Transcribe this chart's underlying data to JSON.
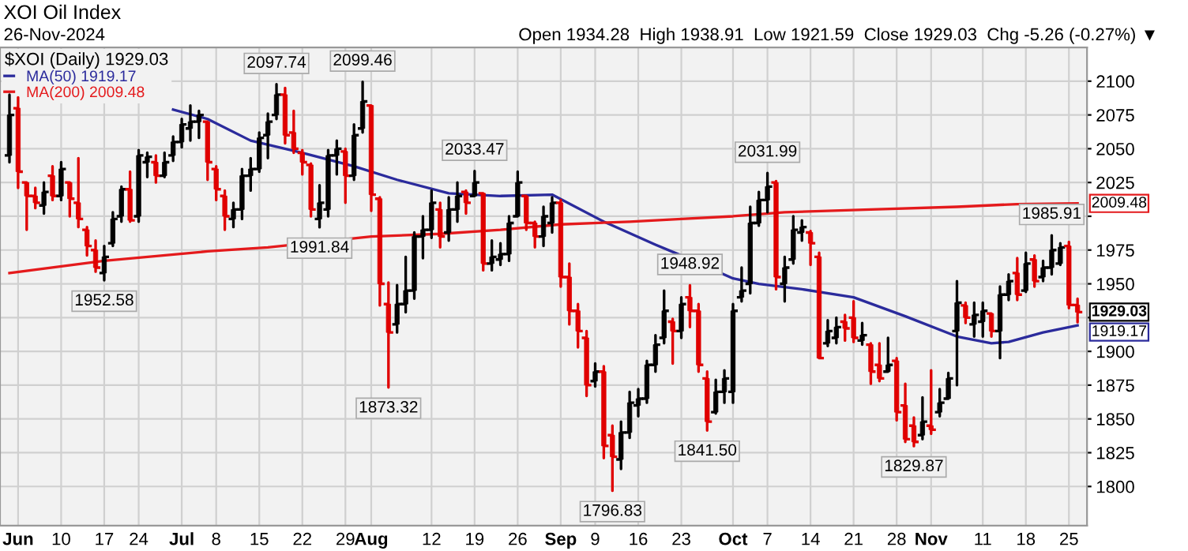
{
  "chart_data": {
    "type": "candlestick",
    "title": "XOI Oil Index",
    "subtitle": "26-Nov-2024",
    "legend_title": "$XOI (Daily) 1929.03",
    "categories": [
      null,
      "Jun",
      null,
      null,
      null,
      null,
      "10",
      null,
      null,
      null,
      null,
      "17",
      null,
      null,
      null,
      "24",
      null,
      null,
      null,
      null,
      "Jul",
      null,
      null,
      null,
      "8",
      null,
      null,
      null,
      null,
      "15",
      null,
      null,
      null,
      null,
      "22",
      null,
      null,
      null,
      null,
      "29",
      null,
      null,
      "Aug",
      null,
      null,
      null,
      null,
      null,
      null,
      "12",
      null,
      null,
      null,
      null,
      "19",
      null,
      null,
      null,
      null,
      "26",
      null,
      null,
      null,
      null,
      "Sep",
      null,
      null,
      null,
      "9",
      null,
      null,
      null,
      null,
      "16",
      null,
      null,
      null,
      null,
      "23",
      null,
      null,
      null,
      null,
      null,
      "Oct",
      null,
      null,
      null,
      "7",
      null,
      null,
      null,
      null,
      "14",
      null,
      null,
      null,
      null,
      "21",
      null,
      null,
      null,
      null,
      "28",
      null,
      null,
      null,
      "Nov",
      null,
      null,
      null,
      null,
      null,
      "11",
      null,
      null,
      null,
      null,
      "18",
      null,
      null,
      null,
      null,
      "25",
      null
    ],
    "ohlc": [
      [
        2045,
        2090,
        2040,
        2075
      ],
      [
        2080,
        2088,
        2021,
        2033
      ],
      [
        2025,
        2025,
        1990,
        2015
      ],
      [
        2015,
        2021,
        2006,
        2010
      ],
      [
        2008,
        2025,
        2002,
        2018
      ],
      [
        2030,
        2037,
        2012,
        2015
      ],
      [
        2015,
        2040,
        2012,
        2035
      ],
      [
        2025,
        2025,
        2000,
        2013
      ],
      [
        2010,
        2043,
        1992,
        1998
      ],
      [
        1990,
        1992,
        1971,
        1978
      ],
      [
        1975,
        1982,
        1959,
        1962
      ],
      [
        1958,
        1978,
        1952.58,
        1970
      ],
      [
        1980,
        2003,
        1978,
        1998
      ],
      [
        2000,
        2022,
        1996,
        2020
      ],
      [
        2020,
        2033,
        1996,
        1997
      ],
      [
        2000,
        2049,
        1996,
        2045
      ],
      [
        2040,
        2047,
        2029,
        2044
      ],
      [
        2040,
        2045,
        2025,
        2030
      ],
      [
        2030,
        2047,
        2029,
        2040
      ],
      [
        2045,
        2059,
        2041,
        2055
      ],
      [
        2055,
        2072,
        2051,
        2068
      ],
      [
        2065,
        2082,
        2056,
        2070
      ],
      [
        2070,
        2078,
        2058,
        2075
      ],
      [
        2070,
        2070,
        2027,
        2040
      ],
      [
        2035,
        2037,
        2012,
        2020
      ],
      [
        2015,
        2019,
        1990,
        2000
      ],
      [
        1998,
        2010,
        1992,
        2005
      ],
      [
        2005,
        2035,
        1998,
        2030
      ],
      [
        2030,
        2043,
        2019,
        2035
      ],
      [
        2035,
        2062,
        2033,
        2058
      ],
      [
        2060,
        2076,
        2043,
        2070
      ],
      [
        2075,
        2097.74,
        2072,
        2090
      ],
      [
        2090,
        2095,
        2054,
        2060
      ],
      [
        2062,
        2078,
        2047,
        2050
      ],
      [
        2047,
        2049,
        2031,
        2040
      ],
      [
        2038,
        2039,
        2000,
        2005
      ],
      [
        1998,
        2023,
        1991.84,
        2010
      ],
      [
        2005,
        2049,
        2000,
        2045
      ],
      [
        2045,
        2056,
        2031,
        2050
      ],
      [
        2048,
        2050,
        2010,
        2030
      ],
      [
        2030,
        2068,
        2027,
        2060
      ],
      [
        2065,
        2099.46,
        2062,
        2085
      ],
      [
        2082,
        2082,
        2004,
        2016
      ],
      [
        2013,
        2014,
        1934,
        1950
      ],
      [
        1935,
        1951,
        1873.32,
        1914
      ],
      [
        1920,
        1949,
        1914,
        1935
      ],
      [
        1935,
        1970,
        1929,
        1945
      ],
      [
        1945,
        1988,
        1939,
        1985
      ],
      [
        1985,
        2000,
        1969,
        1990
      ],
      [
        1990,
        2019,
        1984,
        2010
      ],
      [
        2005,
        2010,
        1977,
        1985
      ],
      [
        1988,
        2014,
        1982,
        2005
      ],
      [
        2005,
        2025,
        1996,
        2015
      ],
      [
        2018,
        2019,
        2002,
        2010
      ],
      [
        2015,
        2033.47,
        2015,
        2025
      ],
      [
        2017,
        2017,
        1960,
        1965
      ],
      [
        1965,
        1982,
        1960,
        1970
      ],
      [
        1968,
        1980,
        1964,
        1972
      ],
      [
        1972,
        2000,
        1967,
        1995
      ],
      [
        2000,
        2033,
        2000,
        2025
      ],
      [
        2015,
        2015,
        1990,
        1995
      ],
      [
        1995,
        1996,
        1977,
        1985
      ],
      [
        1985,
        2007,
        1978,
        2000
      ],
      [
        1995,
        2014,
        1988,
        2010
      ],
      [
        2010,
        2012,
        1948,
        1955
      ],
      [
        1955,
        1965,
        1920,
        1930
      ],
      [
        1930,
        1935,
        1903,
        1915
      ],
      [
        1910,
        1915,
        1867,
        1875
      ],
      [
        1878,
        1891,
        1874,
        1885
      ],
      [
        1885,
        1889,
        1821,
        1830
      ],
      [
        1838,
        1845,
        1796.83,
        1822
      ],
      [
        1820,
        1848,
        1813,
        1840
      ],
      [
        1840,
        1870,
        1836,
        1862
      ],
      [
        1860,
        1872,
        1852,
        1865
      ],
      [
        1865,
        1893,
        1862,
        1890
      ],
      [
        1890,
        1912,
        1885,
        1905
      ],
      [
        1910,
        1945,
        1906,
        1930
      ],
      [
        1922,
        1924,
        1891,
        1915
      ],
      [
        1915,
        1940,
        1910,
        1935
      ],
      [
        1940,
        1948.92,
        1918,
        1930
      ],
      [
        1930,
        1935,
        1885,
        1890
      ],
      [
        1880,
        1885,
        1841.5,
        1848
      ],
      [
        1855,
        1879,
        1854,
        1870
      ],
      [
        1870,
        1886,
        1862,
        1880
      ],
      [
        1870,
        1935,
        1862,
        1930
      ],
      [
        1940,
        1962,
        1937,
        1945
      ],
      [
        1950,
        2007,
        1943,
        1995
      ],
      [
        1995,
        2018,
        1993,
        2012
      ],
      [
        2012,
        2031.99,
        2003,
        2022
      ],
      [
        2025,
        2026,
        1946,
        1955
      ],
      [
        1950,
        1970,
        1937,
        1962
      ],
      [
        1968,
        2000,
        1965,
        1990
      ],
      [
        1988,
        1997,
        1982,
        1992
      ],
      [
        1988,
        1989,
        1964,
        1980
      ],
      [
        1970,
        1973,
        1895,
        1895
      ],
      [
        1906,
        1923,
        1904,
        1915
      ],
      [
        1910,
        1925,
        1906,
        1918
      ],
      [
        1922,
        1927,
        1908,
        1917
      ],
      [
        1925,
        1937,
        1907,
        1910
      ],
      [
        1908,
        1921,
        1905,
        1912
      ],
      [
        1905,
        1906,
        1876,
        1885
      ],
      [
        1890,
        1906,
        1878,
        1880
      ],
      [
        1885,
        1910,
        1885,
        1890
      ],
      [
        1893,
        1895,
        1849,
        1855
      ],
      [
        1860,
        1876,
        1833,
        1835
      ],
      [
        1845,
        1851,
        1829.87,
        1833
      ],
      [
        1838,
        1866,
        1835,
        1848
      ],
      [
        1845,
        1886,
        1839,
        1842
      ],
      [
        1855,
        1872,
        1852,
        1862
      ],
      [
        1865,
        1884,
        1865,
        1880
      ],
      [
        1915,
        1952,
        1875,
        1936
      ],
      [
        1934,
        1936,
        1921,
        1925
      ],
      [
        1920,
        1936,
        1911,
        1927
      ],
      [
        1922,
        1936,
        1911,
        1930
      ],
      [
        1928,
        1928,
        1911,
        1915
      ],
      [
        1915,
        1948,
        1895,
        1942
      ],
      [
        1942,
        1957,
        1938,
        1952
      ],
      [
        1958,
        1969,
        1938,
        1942
      ],
      [
        1945,
        1973,
        1944,
        1965
      ],
      [
        1968,
        1971,
        1948,
        1952
      ],
      [
        1955,
        1967,
        1952,
        1962
      ],
      [
        1962,
        1985.91,
        1957,
        1975
      ],
      [
        1965,
        1980,
        1964,
        1977
      ],
      [
        1978,
        1981,
        1932,
        1934.29
      ],
      [
        1934.28,
        1938.91,
        1921.59,
        1929.03
      ]
    ],
    "colors": [
      "#000000",
      "#e00000",
      "#e00000",
      "#e00000",
      "#000000",
      "#e00000",
      "#000000",
      "#e00000",
      "#e00000",
      "#e00000",
      "#e00000",
      "#000000",
      "#000000",
      "#000000",
      "#e00000",
      "#000000",
      "#000000",
      "#e00000",
      "#000000",
      "#000000",
      "#000000",
      "#000000",
      "#000000",
      "#e00000",
      "#e00000",
      "#e00000",
      "#000000",
      "#000000",
      "#000000",
      "#000000",
      "#000000",
      "#000000",
      "#e00000",
      "#e00000",
      "#e00000",
      "#e00000",
      "#000000",
      "#000000",
      "#000000",
      "#e00000",
      "#000000",
      "#000000",
      "#e00000",
      "#e00000",
      "#e00000",
      "#000000",
      "#000000",
      "#000000",
      "#000000",
      "#000000",
      "#e00000",
      "#000000",
      "#000000",
      "#e00000",
      "#000000",
      "#e00000",
      "#000000",
      "#000000",
      "#000000",
      "#000000",
      "#e00000",
      "#e00000",
      "#000000",
      "#000000",
      "#e00000",
      "#e00000",
      "#e00000",
      "#e00000",
      "#000000",
      "#e00000",
      "#e00000",
      "#000000",
      "#000000",
      "#000000",
      "#000000",
      "#000000",
      "#000000",
      "#e00000",
      "#000000",
      "#e00000",
      "#e00000",
      "#e00000",
      "#000000",
      "#000000",
      "#000000",
      "#000000",
      "#000000",
      "#000000",
      "#000000",
      "#e00000",
      "#000000",
      "#000000",
      "#000000",
      "#e00000",
      "#e00000",
      "#000000",
      "#000000",
      "#e00000",
      "#e00000",
      "#000000",
      "#e00000",
      "#e00000",
      "#000000",
      "#e00000",
      "#e00000",
      "#e00000",
      "#000000",
      "#e00000",
      "#000000",
      "#000000",
      "#000000",
      "#e00000",
      "#000000",
      "#000000",
      "#e00000",
      "#000000",
      "#000000",
      "#e00000",
      "#000000",
      "#e00000",
      "#000000",
      "#000000",
      "#000000",
      "#e00000",
      "#e00000"
    ],
    "series": [
      {
        "name": "MA(50) 1919.17",
        "type": "line",
        "color": "#2b2b9c",
        "values": [
          null,
          null,
          null,
          null,
          null,
          null,
          null,
          null,
          null,
          null,
          null,
          null,
          null,
          null,
          null,
          null,
          null,
          null,
          null,
          2079,
          null,
          null,
          null,
          2072,
          null,
          null,
          null,
          null,
          2056,
          null,
          null,
          null,
          null,
          null,
          2047,
          null,
          null,
          null,
          null,
          null,
          2037,
          null,
          null,
          null,
          null,
          2027,
          null,
          null,
          null,
          null,
          null,
          2017,
          null,
          null,
          null,
          null,
          null,
          2015,
          null,
          null,
          null,
          null,
          null,
          2016,
          null,
          null,
          null,
          null,
          null,
          1996,
          null,
          null,
          null,
          null,
          null,
          1979,
          null,
          null,
          1971,
          null,
          null,
          null,
          null,
          null,
          1954,
          null,
          null,
          1950,
          null,
          null,
          null,
          null,
          1946,
          null,
          null,
          null,
          null,
          null,
          1940,
          null,
          null,
          null,
          null,
          null,
          1926,
          null,
          null,
          null,
          null,
          null,
          1911,
          null,
          null,
          null,
          1906,
          null,
          1907,
          null,
          null,
          null,
          1914,
          null,
          null,
          null,
          1919.17
        ]
      },
      {
        "name": "MA(200) 2009.48",
        "type": "line",
        "color": "#e41a1c",
        "values": [
          1958,
          null,
          null,
          null,
          null,
          null,
          null,
          null,
          null,
          null,
          null,
          1967,
          null,
          null,
          null,
          null,
          null,
          null,
          null,
          null,
          null,
          null,
          null,
          1974,
          null,
          null,
          null,
          null,
          null,
          null,
          1977,
          null,
          null,
          null,
          null,
          null,
          null,
          null,
          null,
          null,
          null,
          null,
          1985,
          null,
          null,
          null,
          null,
          null,
          null,
          null,
          1987,
          null,
          null,
          null,
          null,
          null,
          null,
          1990,
          null,
          null,
          null,
          null,
          null,
          null,
          1994,
          null,
          null,
          null,
          null,
          null,
          null,
          null,
          1996,
          null,
          null,
          null,
          null,
          null,
          1998,
          null,
          null,
          null,
          null,
          null,
          2000,
          null,
          null,
          null,
          null,
          null,
          2003,
          null,
          null,
          null,
          null,
          null,
          null,
          null,
          null,
          null,
          2005,
          null,
          null,
          null,
          null,
          null,
          null,
          null,
          null,
          null,
          2007,
          null,
          null,
          null,
          null,
          null,
          null,
          2009,
          null,
          null,
          null,
          null,
          null,
          null,
          2009.48
        ]
      }
    ],
    "ylim": [
      1771,
      2125
    ],
    "yticks": [
      1800,
      1825,
      1850,
      1875,
      1900,
      {
        "value": 1925,
        "label": null
      },
      1950,
      1975,
      {
        "value": 2000,
        "label": null
      },
      2025,
      2050,
      2075,
      2100
    ],
    "grid": true,
    "legend": "top left",
    "annotations": [
      "Open 1934.28  High 1938.91  Low 1921.59  Close 1929.03  Chg -5.26 (-0.27%) ▼",
      {
        "text": "2097.74",
        "y": 2097.74
      },
      {
        "text": "2099.46",
        "y": 2099.46
      },
      {
        "text": "1952.58",
        "y": 1952.58
      },
      {
        "text": "1991.84",
        "y": 1991.84
      },
      {
        "text": "1873.32",
        "y": 1873.32
      },
      {
        "text": "2033.47",
        "y": 2033.47
      },
      {
        "text": "1796.83",
        "y": 1796.83
      },
      {
        "text": "1948.92",
        "y": 1948.92
      },
      {
        "text": "1841.50",
        "y": 1841.5
      },
      {
        "text": "2031.99",
        "y": 2031.99
      },
      {
        "text": "1829.87",
        "y": 1829.87
      },
      {
        "text": "1985.91",
        "y": 1985.91
      },
      "1929.03",
      "1919.17",
      "2009.48"
    ]
  }
}
